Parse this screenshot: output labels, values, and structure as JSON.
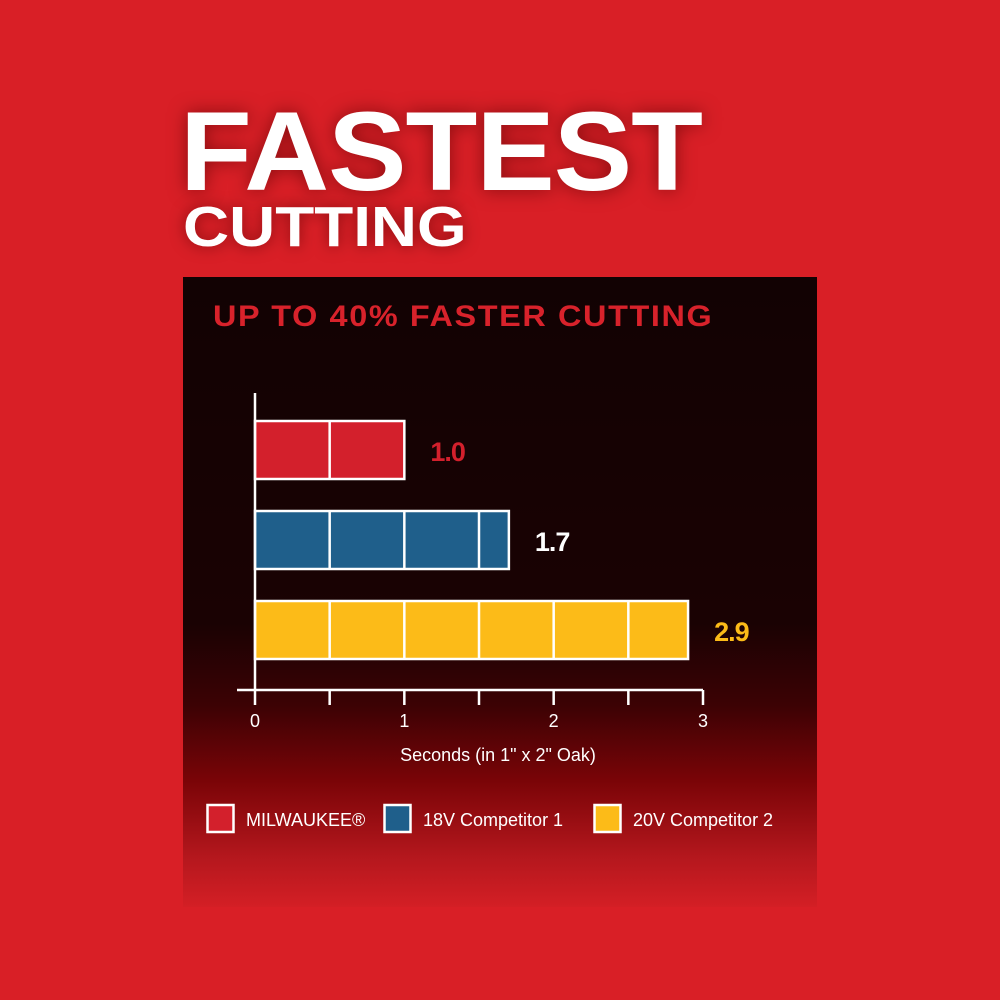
{
  "headline": {
    "line1": "FASTEST",
    "line2": "CUTTING"
  },
  "chart_data": {
    "type": "bar",
    "orientation": "horizontal",
    "title": "UP TO 40% FASTER CUTTING",
    "xlabel": "Seconds (in 1\" x 2\" Oak)",
    "xlim": [
      0,
      3
    ],
    "xticks": [
      "0",
      "1",
      "2",
      "3"
    ],
    "minor_step": 0.5,
    "grid": false,
    "legend_position": "bottom",
    "series": [
      {
        "name": "MILWAUKEE®",
        "value": 1.0,
        "label": "1.0",
        "color": "#d3202c",
        "label_color": "#d3202c"
      },
      {
        "name": "18V Competitor 1",
        "value": 1.7,
        "label": "1.7",
        "color": "#1f5f8b",
        "label_color": "#ffffff"
      },
      {
        "name": "20V Competitor 2",
        "value": 2.9,
        "label": "2.9",
        "color": "#fcbb18",
        "label_color": "#fcbb18"
      }
    ]
  }
}
